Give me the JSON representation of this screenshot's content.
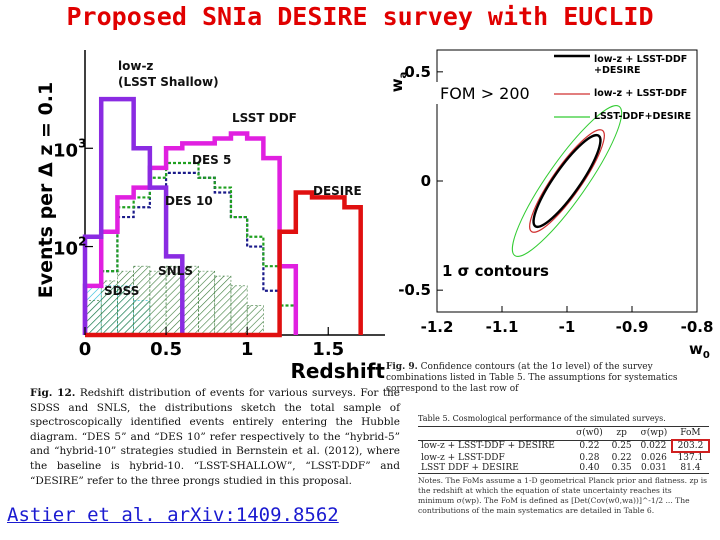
{
  "slide": {
    "title": "Proposed SNIa DESIRE survey with EUCLID",
    "reference": "Astier et al. arXiv:1409.8562"
  },
  "chart_data": [
    {
      "type": "histogram",
      "ylabel": "Events per Δ z = 0.1",
      "xlabel": "Redshift",
      "xlim": [
        0,
        1.85
      ],
      "ylim_log10": [
        1.1,
        4.0
      ],
      "yscale": "log",
      "x_ticks": [
        "0",
        "0.5",
        "1",
        "1.5"
      ],
      "x_tick_values": [
        0,
        0.5,
        1,
        1.5
      ],
      "y_ticks": [
        {
          "base": "10",
          "exp": "2",
          "value": 2
        },
        {
          "base": "10",
          "exp": "3",
          "value": 3
        }
      ],
      "bin_edges": [
        0.0,
        0.1,
        0.2,
        0.3,
        0.4,
        0.5,
        0.6,
        0.7,
        0.8,
        0.9,
        1.0,
        1.1,
        1.2,
        1.3,
        1.4,
        1.5,
        1.6,
        1.7
      ],
      "series": [
        {
          "name": "SDSS",
          "color": "#1fb8d8",
          "style": "hatch",
          "log10_counts": [
            1.6,
            1.6,
            1.6,
            1.45
          ]
        },
        {
          "name": "SNLS",
          "color": "#3a7a3a",
          "style": "hatch",
          "log10_counts": [
            1.45,
            1.65,
            1.75,
            1.8,
            1.75,
            1.8,
            1.8,
            1.75,
            1.7,
            1.6,
            1.4
          ]
        },
        {
          "name": "DES 10",
          "color": "#1a1a8a",
          "style": "dotted",
          "log10_counts": [
            1.6,
            1.75,
            2.3,
            2.4,
            2.6,
            2.75,
            2.75,
            2.7,
            2.55,
            2.3,
            2.0,
            1.55
          ]
        },
        {
          "name": "DES 5",
          "color": "#1fa01f",
          "style": "dotted",
          "log10_counts": [
            1.6,
            1.75,
            2.4,
            2.5,
            2.7,
            2.85,
            2.85,
            2.7,
            2.6,
            2.3,
            2.1,
            1.8,
            1.4
          ]
        },
        {
          "name": "LSST DDF",
          "color": "#e020e0",
          "style": "solid",
          "log10_counts": [
            1.6,
            2.15,
            2.5,
            2.6,
            2.8,
            3.0,
            3.05,
            3.05,
            3.1,
            3.15,
            3.1,
            2.9,
            1.8
          ]
        },
        {
          "name": "low-z (LSST Shallow)",
          "color": "#8a2be2",
          "style": "solid",
          "log10_counts": [
            2.1,
            3.5,
            3.5,
            3.0,
            2.6,
            1.9
          ]
        },
        {
          "name": "DESIRE",
          "color": "#e01010",
          "style": "solid",
          "log10_counts": [
            1.1,
            1.1,
            1.1,
            1.1,
            1.1,
            1.1,
            1.1,
            1.1,
            1.1,
            1.1,
            1.1,
            1.1,
            2.15,
            2.55,
            2.5,
            2.5,
            2.4
          ]
        }
      ],
      "annotations": [
        {
          "text": "low-z",
          "series": "low-z (LSST Shallow)"
        },
        {
          "text": "(LSST Shallow)",
          "series": "low-z (LSST Shallow)"
        },
        {
          "text": "LSST DDF",
          "series": "LSST DDF"
        },
        {
          "text": "DES 5",
          "series": "DES 5"
        },
        {
          "text": "DES 10",
          "series": "DES 10"
        },
        {
          "text": "DESIRE",
          "series": "DESIRE"
        },
        {
          "text": "SNLS",
          "series": "SNLS"
        },
        {
          "text": "SDSS",
          "series": "SDSS"
        }
      ]
    },
    {
      "type": "contour",
      "xlabel": "w",
      "xlabel_sub": "0",
      "ylabel": "w",
      "ylabel_sub": "a",
      "xlim": [
        -1.2,
        -0.8
      ],
      "ylim": [
        -0.6,
        0.6
      ],
      "x_ticks": [
        "-1.2",
        "-1.1",
        "-1",
        "-0.9",
        "-0.8"
      ],
      "x_tick_values": [
        -1.2,
        -1.1,
        -1.0,
        -0.9,
        -0.8
      ],
      "y_ticks": [
        "0.5",
        "0",
        "-0.5"
      ],
      "y_tick_values": [
        0.5,
        0.0,
        -0.5
      ],
      "annotation": "1 σ contours",
      "fom_label": "FOM > 200",
      "ellipses": [
        {
          "name": "LSST-DDF+DESIRE",
          "color": "#33cc33",
          "width": 1,
          "cx": -1.0,
          "cy": 0.0,
          "rx": 0.14,
          "ry": 0.03,
          "angle": -55
        },
        {
          "name": "low-z + LSST-DDF",
          "color": "#d03030",
          "width": 1.2,
          "cx": -1.0,
          "cy": 0.0,
          "rx": 0.095,
          "ry": 0.022,
          "angle": -55
        },
        {
          "name": "low-z + LSST-DDF +DESIRE",
          "color": "#000000",
          "width": 2.4,
          "cx": -1.0,
          "cy": 0.0,
          "rx": 0.085,
          "ry": 0.02,
          "angle": -55
        }
      ],
      "legend": [
        {
          "lines": [
            "low-z + LSST-DDF",
            "+DESIRE"
          ],
          "color": "#000000"
        },
        {
          "lines": [
            "low-z + LSST-DDF"
          ],
          "color": "#d03030"
        },
        {
          "lines": [
            "LSST-DDF+DESIRE"
          ],
          "color": "#33cc33"
        }
      ]
    }
  ],
  "caption": {
    "label": "Fig. 12.",
    "text": "Redshift distribution of events for various surveys. For the SDSS and SNLS, the distributions sketch the total sample of spectroscopically identified events entirely entering the Hubble diagram. “DES 5” and “DES 10” refer respectively to the “hybrid-5” and “hybrid-10” strategies studied in Bernstein et al. (2012), where the baseline is hybrid-10. “LSST-SHALLOW”, “LSST-DDF” and “DESIRE” refer to the three prongs studied in this proposal."
  },
  "fig9_caption": {
    "label": "Fig. 9.",
    "text": "Confidence contours (at the 1σ level) of the survey combinations listed in Table 5. The assumptions for systematics correspond to the last row of"
  },
  "table5": {
    "title": "Table 5. Cosmological performance of the simulated surveys.",
    "headers": [
      "",
      "σ(w0)",
      "zp",
      "σ(wp)",
      "FoM"
    ],
    "rows": [
      [
        "low-z + LSST-DDF + DESIRE",
        "0.22",
        "0.25",
        "0.022",
        "203.2"
      ],
      [
        "low-z + LSST-DDF",
        "0.28",
        "0.22",
        "0.026",
        "137.1"
      ],
      [
        "LSST DDF + DESIRE",
        "0.40",
        "0.35",
        "0.031",
        "81.4"
      ]
    ]
  },
  "notes": {
    "text": "Notes. The FoMs assume a 1-D geometrical Planck prior and flatness. zp is the redshift at which the equation of state uncertainty reaches its minimum σ(wp). The FoM is defined as [Det(Cov(w0,wa))]^-1/2 ... The contributions of the main systematics are detailed in Table 6."
  }
}
